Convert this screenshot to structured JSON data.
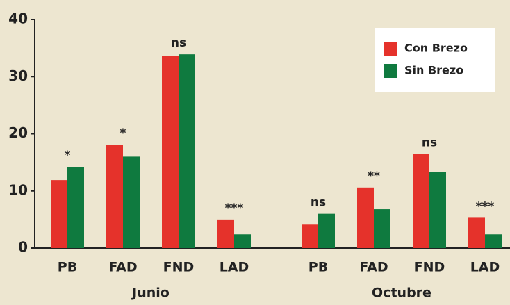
{
  "chart_data": {
    "type": "bar",
    "categories": [
      "PB",
      "FAD",
      "FND",
      "LAD",
      "PB",
      "FAD",
      "FND",
      "LAD"
    ],
    "groups": [
      "Junio",
      "Octubre"
    ],
    "annotations": [
      "*",
      "*",
      "ns",
      "***",
      "ns",
      "**",
      "ns",
      "***"
    ],
    "series": [
      {
        "name": "Con Brezo",
        "color": "#e5322b",
        "values": [
          11.9,
          18.1,
          33.6,
          5.0,
          4.1,
          10.6,
          16.5,
          5.3
        ]
      },
      {
        "name": "Sin Brezo",
        "color": "#0f7a3f",
        "values": [
          14.2,
          16.0,
          33.9,
          2.4,
          6.0,
          6.8,
          13.3,
          2.4
        ]
      }
    ],
    "ylim": [
      0,
      40
    ],
    "yticks": [
      0,
      10,
      20,
      30,
      40
    ],
    "legend": "top-right"
  }
}
